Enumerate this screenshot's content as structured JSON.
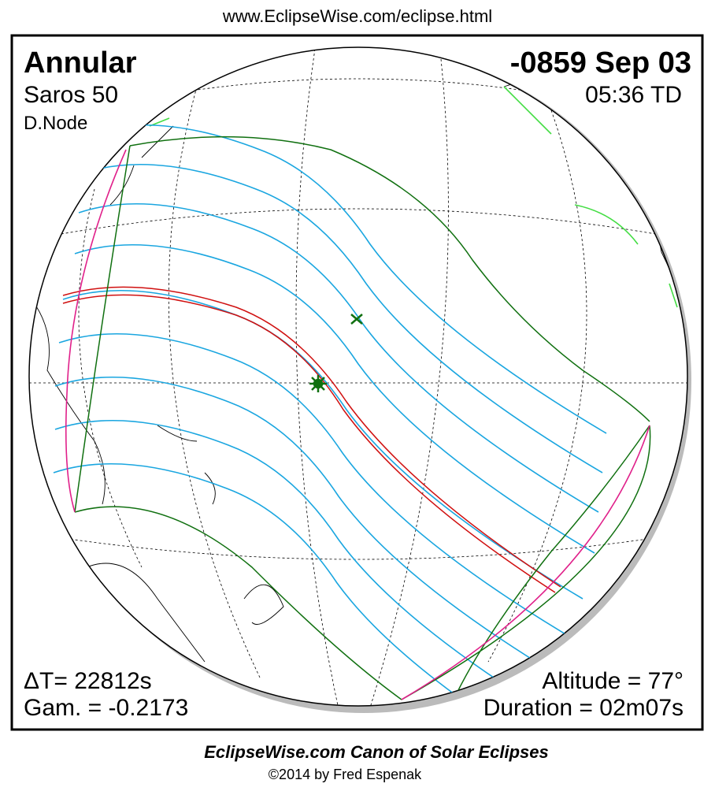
{
  "header": {
    "url": "www.EclipseWise.com/eclipse.html"
  },
  "panel": {
    "type": "Annular",
    "saros": "Saros  50",
    "node": "D.Node",
    "date": "-0859 Sep 03",
    "time": "05:36 TD",
    "delta_t": "ΔT=  22812s",
    "gamma": "Gam. = -0.2173",
    "altitude": "Altitude = 77°",
    "duration": "Duration = 02m07s"
  },
  "footer": {
    "title": "EclipseWise.com Canon of Solar Eclipses",
    "copyright": "©2014 by Fred Espenak"
  }
}
